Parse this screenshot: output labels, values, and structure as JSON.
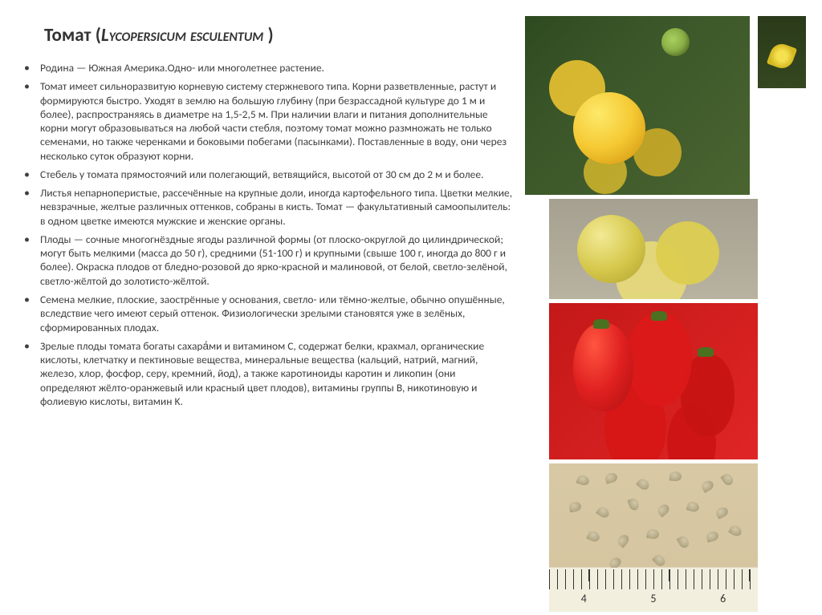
{
  "title_main": "Томат (",
  "title_latin": "Lycopersicum esculentum",
  "title_end": " )",
  "bullets": [
    "Родина — Южная Америка.Одно- или многолетнее растение.",
    "Томат имеет сильноразвитую корневую систему стержневого типа. Корни разветвленные, растут и формируются быстро. Уходят в землю на большую глубину (при безрассадной культуре до 1 м и более), распространяясь в диаметре на 1,5-2,5 м. При наличии влаги и питания дополнительные корни могут образовываться на любой части стебля, поэтому томат можно размножать не только семенами, но также черенками и боковыми побегами (пасынками). Поставленные в воду, они через несколько суток образуют корни.",
    "Стебель у томата прямостоячий или полегающий, ветвящийся, высотой от 30 см до 2 м и более.",
    "Листья непарноперистые, рассечённые на крупные доли, иногда картофельного типа. Цветки мелкие, невзрачные, желтые различных оттенков, собраны в кисть. Томат — факультативный самоопылитель: в одном цветке имеются мужские и женские органы.",
    "Плоды — сочные многогнёздные ягоды различной формы (от плоско-округлой до цилиндрической; могут быть мелкими (масса до 50 г), средними (51-100 г) и крупными (свыше 100 г, иногда до 800 г и более). Окраска плодов от бледно-розовой до ярко-красной и малиновой, от белой, светло-зелёной, светло-жёлтой до золотисто-жёлтой.",
    "Семена мелкие, плоские, заострённые у основания, светло- или тёмно-желтые, обычно опушённые, вследствие чего имеют серый оттенок. Физиологически зрелыми становятся уже в зелёных, сформированных плодах.",
    "Зрелые плоды томата богаты сахара́ми и витамином C, содержат белки, крахмал, органические кислоты, клетчатку и пектиновые вещества, минеральные вещества (кальций, натрий, магний, железо, хлор, фосфор, серу, кремний, йод), а также каротиноиды каротин и ликопин (они определяют жёлто-оранжевый или красный цвет плодов), витамины группы B, никотиновую и фолиевую кислоты, витамин K."
  ],
  "ruler_numbers": [
    "4",
    "5",
    "6"
  ],
  "seeds": [
    {
      "l": 35,
      "t": 15,
      "r": 20
    },
    {
      "l": 70,
      "t": 12,
      "r": -15
    },
    {
      "l": 110,
      "t": 20,
      "r": 40
    },
    {
      "l": 150,
      "t": 10,
      "r": 5
    },
    {
      "l": 190,
      "t": 22,
      "r": -30
    },
    {
      "l": 215,
      "t": 14,
      "r": 55
    },
    {
      "l": 25,
      "t": 48,
      "r": -10
    },
    {
      "l": 60,
      "t": 55,
      "r": 35
    },
    {
      "l": 98,
      "t": 45,
      "r": 70
    },
    {
      "l": 135,
      "t": 52,
      "r": -40
    },
    {
      "l": 172,
      "t": 48,
      "r": 15
    },
    {
      "l": 208,
      "t": 55,
      "r": -25
    },
    {
      "l": 48,
      "t": 85,
      "r": 25
    },
    {
      "l": 85,
      "t": 90,
      "r": -50
    },
    {
      "l": 122,
      "t": 82,
      "r": 10
    },
    {
      "l": 160,
      "t": 92,
      "r": 60
    },
    {
      "l": 196,
      "t": 85,
      "r": -15
    },
    {
      "l": 225,
      "t": 78,
      "r": 30
    },
    {
      "l": 75,
      "t": 118,
      "r": -35
    },
    {
      "l": 130,
      "t": 115,
      "r": 45
    }
  ],
  "text_color": "#404040",
  "title_color": "#333333",
  "background": "#ffffff"
}
